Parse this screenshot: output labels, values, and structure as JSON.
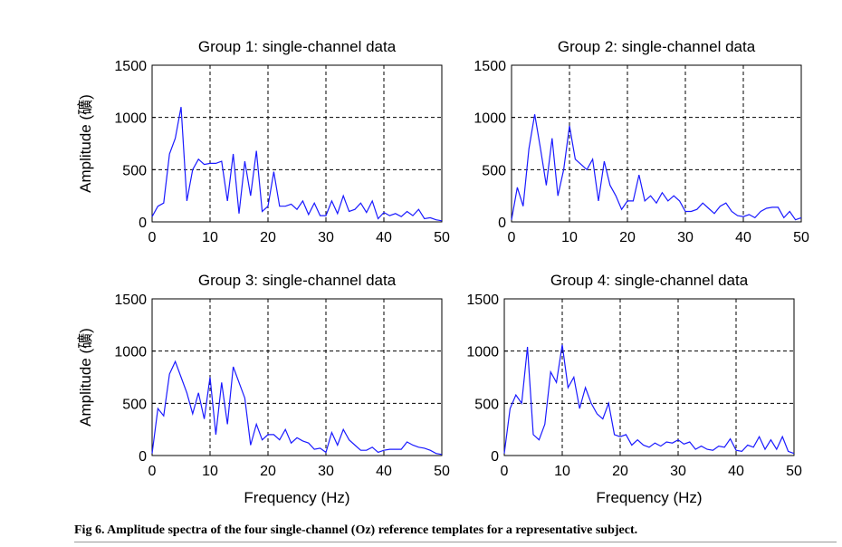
{
  "caption": "Fig 6. Amplitude spectra of the four single-channel (Oz) reference templates for a representative subject.",
  "colors": {
    "series": "#1a1aff",
    "grid": "#000000"
  },
  "chart_data": [
    {
      "type": "line",
      "title": "Group 1: single-channel data",
      "xlabel": "",
      "ylabel": "Amplitude (礦)",
      "xlim": [
        0,
        50
      ],
      "ylim": [
        0,
        1500
      ],
      "xticks": [
        0,
        10,
        20,
        30,
        40,
        50
      ],
      "yticks": [
        0,
        500,
        1000,
        1500
      ],
      "grid": true,
      "x": [
        0,
        1,
        2,
        3,
        4,
        5,
        6,
        7,
        8,
        9,
        10,
        11,
        12,
        13,
        14,
        15,
        16,
        17,
        18,
        19,
        20,
        21,
        22,
        23,
        24,
        25,
        26,
        27,
        28,
        29,
        30,
        31,
        32,
        33,
        34,
        35,
        36,
        37,
        38,
        39,
        40,
        41,
        42,
        43,
        44,
        45,
        46,
        47,
        48,
        49,
        50
      ],
      "values": [
        50,
        150,
        180,
        650,
        800,
        1100,
        200,
        500,
        600,
        550,
        560,
        560,
        580,
        200,
        650,
        80,
        580,
        250,
        680,
        100,
        150,
        480,
        150,
        150,
        170,
        120,
        200,
        70,
        180,
        60,
        60,
        200,
        80,
        250,
        100,
        120,
        180,
        90,
        200,
        30,
        90,
        60,
        80,
        50,
        100,
        60,
        120,
        30,
        40,
        20,
        10
      ]
    },
    {
      "type": "line",
      "title": "Group 2: single-channel data",
      "xlabel": "",
      "ylabel": "",
      "xlim": [
        0,
        50
      ],
      "ylim": [
        0,
        1500
      ],
      "xticks": [
        0,
        10,
        20,
        30,
        40,
        50
      ],
      "yticks": [
        0,
        500,
        1000,
        1500
      ],
      "grid": true,
      "x": [
        0,
        1,
        2,
        3,
        4,
        5,
        6,
        7,
        8,
        9,
        10,
        11,
        12,
        13,
        14,
        15,
        16,
        17,
        18,
        19,
        20,
        21,
        22,
        23,
        24,
        25,
        26,
        27,
        28,
        29,
        30,
        31,
        32,
        33,
        34,
        35,
        36,
        37,
        38,
        39,
        40,
        41,
        42,
        43,
        44,
        45,
        46,
        47,
        48,
        49,
        50
      ],
      "values": [
        20,
        330,
        150,
        700,
        1030,
        700,
        350,
        800,
        250,
        500,
        920,
        600,
        550,
        500,
        600,
        200,
        580,
        350,
        250,
        120,
        200,
        200,
        450,
        200,
        250,
        180,
        280,
        200,
        250,
        200,
        100,
        100,
        120,
        180,
        130,
        80,
        150,
        180,
        100,
        60,
        50,
        70,
        40,
        100,
        130,
        140,
        140,
        40,
        100,
        20,
        40
      ]
    },
    {
      "type": "line",
      "title": "Group 3: single-channel data",
      "xlabel": "Frequency (Hz)",
      "ylabel": "Amplitude (礦)",
      "xlim": [
        0,
        50
      ],
      "ylim": [
        0,
        1500
      ],
      "xticks": [
        0,
        10,
        20,
        30,
        40,
        50
      ],
      "yticks": [
        0,
        500,
        1000,
        1500
      ],
      "grid": true,
      "x": [
        0,
        1,
        2,
        3,
        4,
        5,
        6,
        7,
        8,
        9,
        10,
        11,
        12,
        13,
        14,
        15,
        16,
        17,
        18,
        19,
        20,
        21,
        22,
        23,
        24,
        25,
        26,
        27,
        28,
        29,
        30,
        31,
        32,
        33,
        34,
        35,
        36,
        37,
        38,
        39,
        40,
        41,
        42,
        43,
        44,
        45,
        46,
        47,
        48,
        49,
        50
      ],
      "values": [
        20,
        450,
        380,
        780,
        900,
        750,
        600,
        400,
        600,
        350,
        750,
        200,
        700,
        300,
        850,
        700,
        550,
        100,
        300,
        150,
        200,
        200,
        150,
        250,
        120,
        170,
        140,
        120,
        60,
        70,
        30,
        220,
        100,
        250,
        150,
        100,
        50,
        50,
        80,
        30,
        50,
        60,
        60,
        60,
        130,
        100,
        80,
        70,
        50,
        20,
        10
      ]
    },
    {
      "type": "line",
      "title": "Group 4: single-channel data",
      "xlabel": "Frequency (Hz)",
      "ylabel": "",
      "xlim": [
        0,
        50
      ],
      "ylim": [
        0,
        1500
      ],
      "xticks": [
        0,
        10,
        20,
        30,
        40,
        50
      ],
      "yticks": [
        0,
        500,
        1000,
        1500
      ],
      "grid": true,
      "x": [
        0,
        1,
        2,
        3,
        4,
        5,
        6,
        7,
        8,
        9,
        10,
        11,
        12,
        13,
        14,
        15,
        16,
        17,
        18,
        19,
        20,
        21,
        22,
        23,
        24,
        25,
        26,
        27,
        28,
        29,
        30,
        31,
        32,
        33,
        34,
        35,
        36,
        37,
        38,
        39,
        40,
        41,
        42,
        43,
        44,
        45,
        46,
        47,
        48,
        49,
        50
      ],
      "values": [
        20,
        450,
        580,
        500,
        1040,
        200,
        150,
        300,
        800,
        700,
        1060,
        650,
        750,
        450,
        650,
        500,
        400,
        350,
        500,
        200,
        180,
        200,
        100,
        150,
        100,
        80,
        120,
        90,
        130,
        120,
        150,
        110,
        130,
        60,
        90,
        60,
        50,
        90,
        80,
        160,
        50,
        40,
        100,
        80,
        180,
        60,
        150,
        60,
        180,
        40,
        20
      ]
    }
  ]
}
